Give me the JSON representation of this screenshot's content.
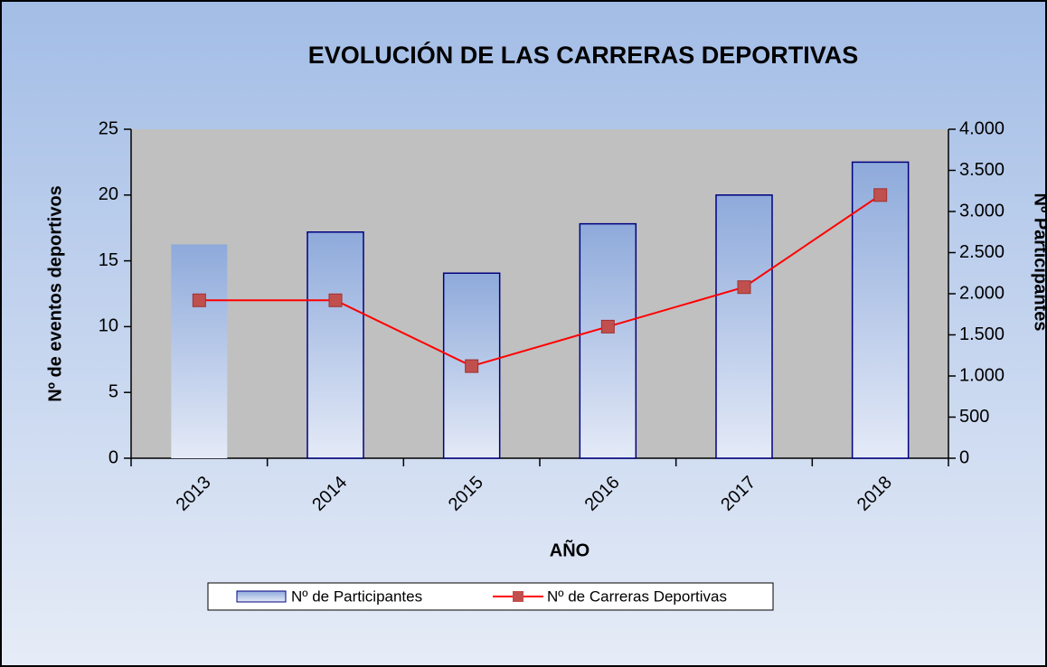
{
  "chart_data": {
    "type": "bar_line",
    "title": "EVOLUCIÓN DE LAS CARRERAS DEPORTIVAS",
    "x_label": "AÑO",
    "y_label": "Nº de eventos deportivos",
    "y2_label": "Nº Participantes",
    "categories": [
      "2013",
      "2014",
      "2015",
      "2016",
      "2017",
      "2018"
    ],
    "series": [
      {
        "name": "Nº de Participantes",
        "type": "bar",
        "axis": "y2",
        "color": "#8eaadb",
        "values": [
          2600,
          2750,
          2250,
          2850,
          3200,
          3600
        ]
      },
      {
        "name": "Nº de Carreras Deportivas",
        "type": "line",
        "axis": "y",
        "color": "#ff0000",
        "values": [
          12,
          12,
          7,
          10,
          13,
          20
        ]
      }
    ],
    "ylim": [
      0,
      25
    ],
    "yticks": [
      0,
      5,
      10,
      15,
      20,
      25
    ],
    "y2lim": [
      0,
      4000
    ],
    "y2ticks": [
      0,
      500,
      {
        "value": 1000,
        "label": "1.000"
      },
      {
        "value": 1500,
        "label": "1.500"
      },
      {
        "value": 2000,
        "label": "2.000"
      },
      {
        "value": 2500,
        "label": "2.500"
      },
      {
        "value": 3000,
        "label": "3.000"
      },
      {
        "value": 3500,
        "label": "3.500"
      },
      {
        "value": 4000,
        "label": "4.000"
      }
    ],
    "legend": "bottom"
  }
}
